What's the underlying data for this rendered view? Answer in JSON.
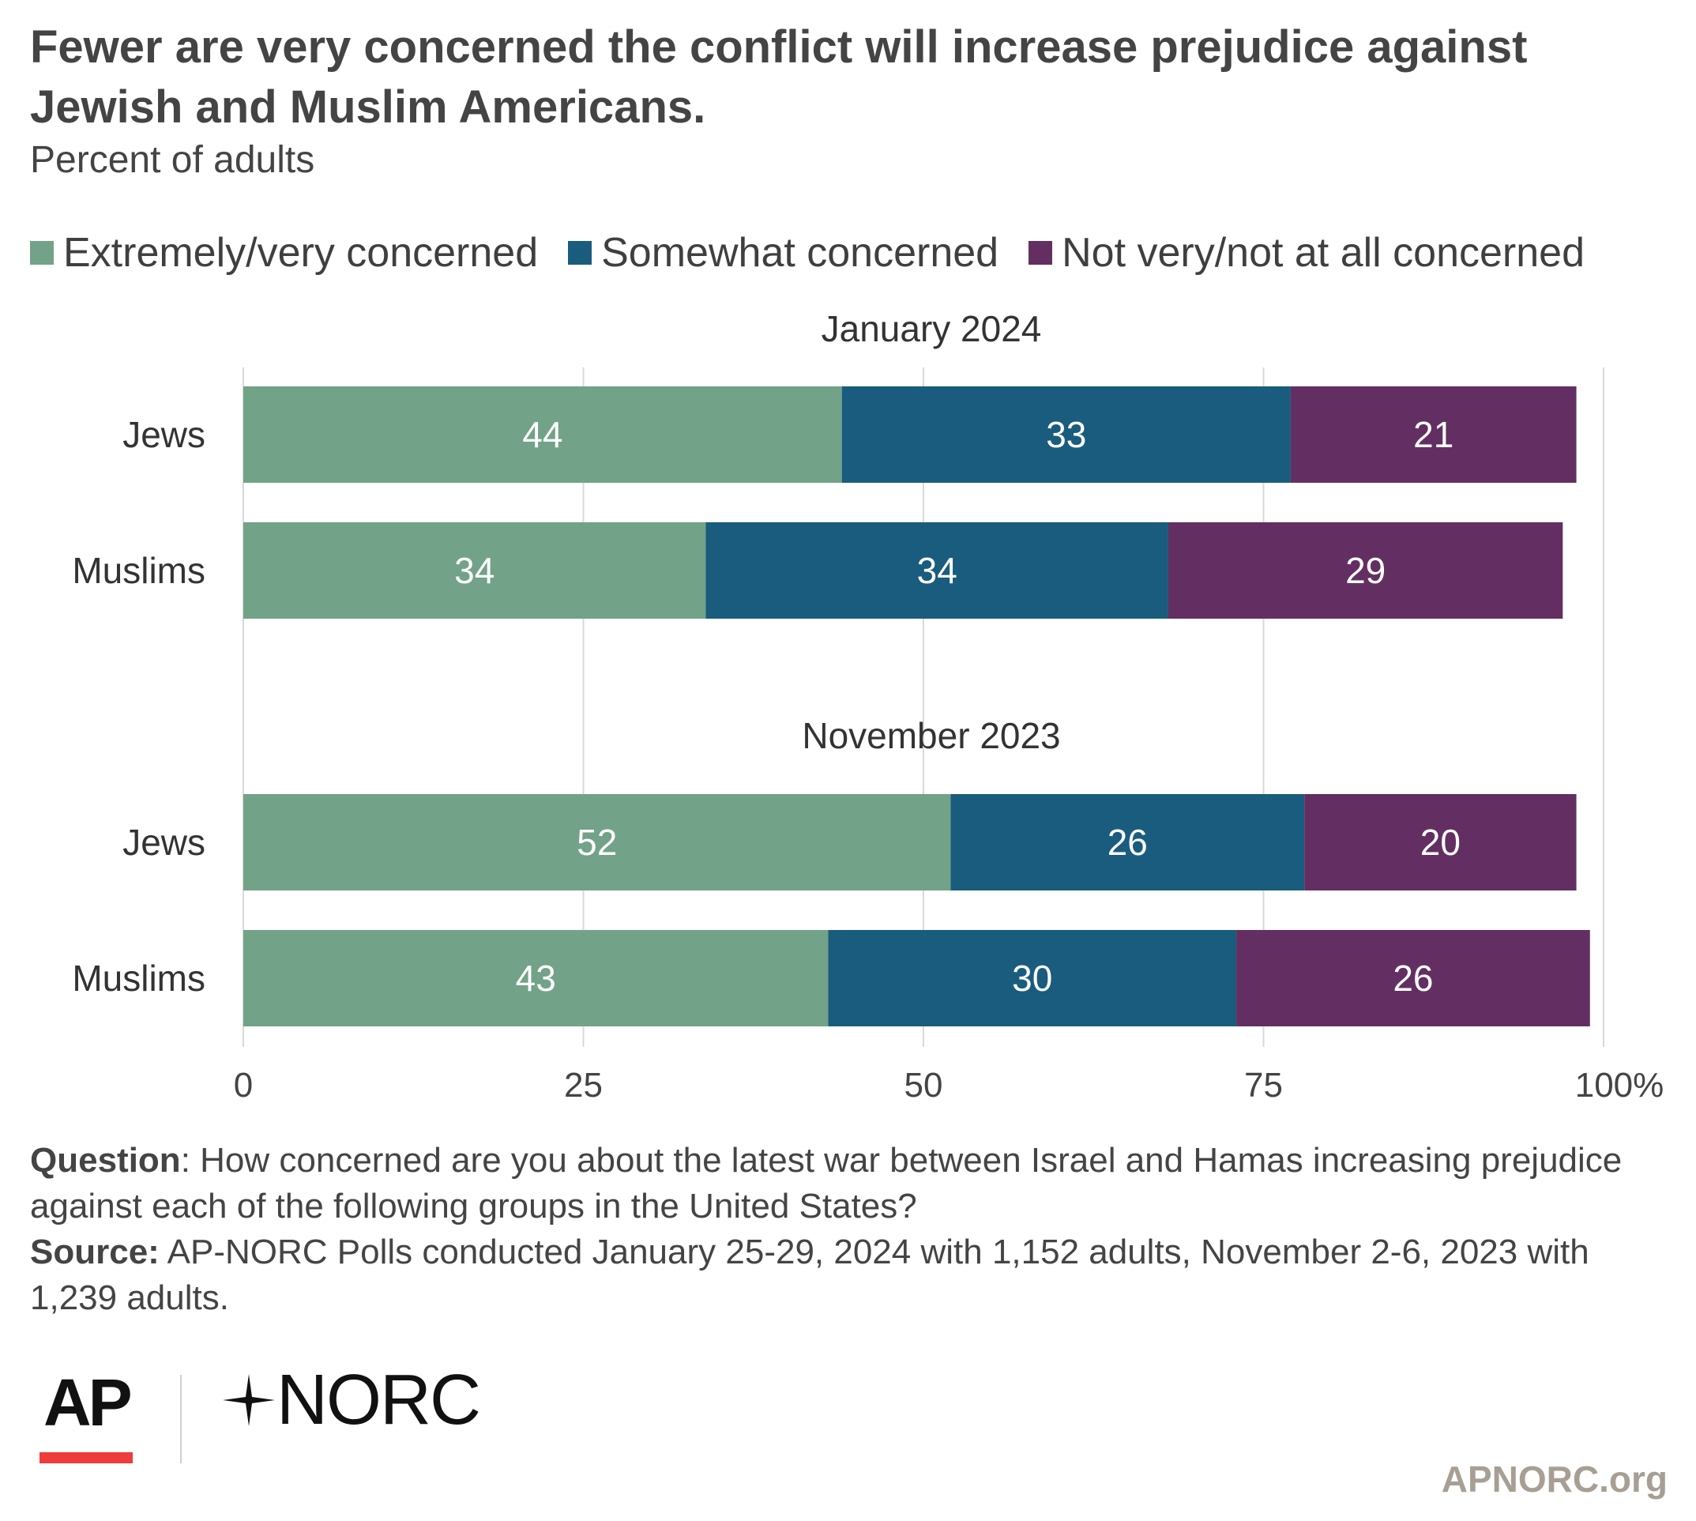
{
  "header": {
    "title": "Fewer are very concerned the conflict will increase prejudice against Jewish and Muslim Americans.",
    "subtitle": "Percent of adults"
  },
  "legend": [
    {
      "label": "Extremely/very concerned",
      "color": "#72a287"
    },
    {
      "label": "Somewhat concerned",
      "color": "#1a5c7d"
    },
    {
      "label": "Not very/not at all concerned",
      "color": "#632f62"
    }
  ],
  "chart_data": {
    "type": "bar",
    "orientation": "horizontal",
    "stacked": true,
    "xlim": [
      0,
      100
    ],
    "x_ticks": [
      "0",
      "25",
      "50",
      "75",
      "100%"
    ],
    "grid": true,
    "legend_position": "top",
    "series_names": [
      "Extremely/very concerned",
      "Somewhat concerned",
      "Not very/not at all concerned"
    ],
    "series_colors": [
      "#72a287",
      "#1a5c7d",
      "#632f62"
    ],
    "groups": [
      {
        "label": "January 2024",
        "rows": [
          {
            "category": "Jews",
            "values": [
              44,
              33,
              21
            ]
          },
          {
            "category": "Muslims",
            "values": [
              34,
              34,
              29
            ]
          }
        ]
      },
      {
        "label": "November 2023",
        "rows": [
          {
            "category": "Jews",
            "values": [
              52,
              26,
              20
            ]
          },
          {
            "category": "Muslims",
            "values": [
              43,
              30,
              26
            ]
          }
        ]
      }
    ]
  },
  "footer": {
    "question_label": "Question",
    "question_text": ": How concerned are you about the latest war between Israel and Hamas increasing prejudice against each of the following groups in the United States?",
    "source_label": "Source:",
    "source_text": " AP-NORC Polls conducted January 25-29, 2024 with 1,152 adults, November 2-6, 2023 with 1,239 adults.",
    "logo_ap": "AP",
    "logo_norc": "NORC",
    "site": "APNORC.org"
  }
}
